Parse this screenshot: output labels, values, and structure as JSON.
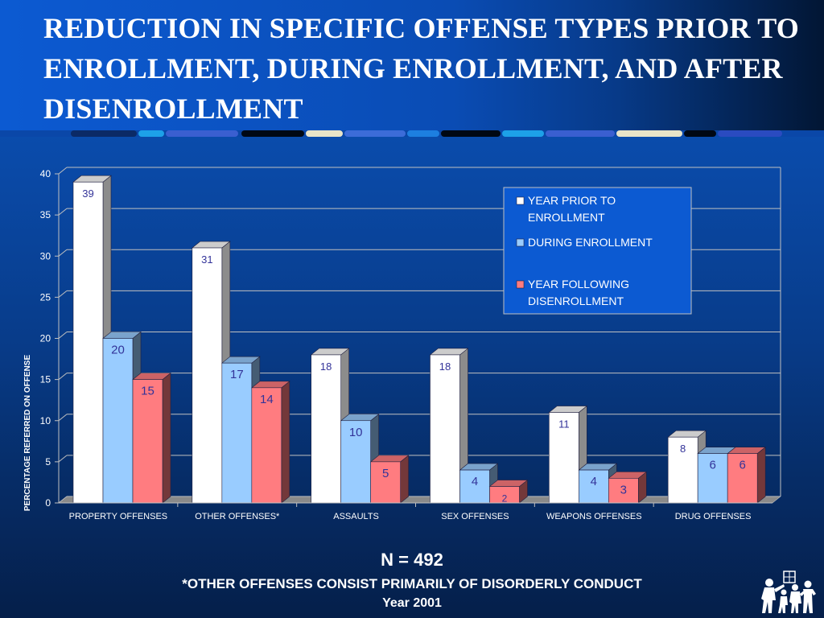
{
  "slide": {
    "title": "REDUCTION IN SPECIFIC OFFENSE TYPES PRIOR TO ENROLLMENT, DURING ENROLLMENT, AND AFTER DISENROLLMENT",
    "n_label": "N = 492",
    "note": "*OTHER OFFENSES CONSIST PRIMARILY OF DISORDERLY CONDUCT",
    "year": "Year 2001"
  },
  "logo_icon": "family-icon",
  "chart_data": {
    "type": "bar",
    "title": "",
    "xlabel": "",
    "ylabel": "PERCENTAGE REFERRED ON OFFENSE",
    "ylim": [
      0,
      40
    ],
    "yticks": [
      0,
      5,
      10,
      15,
      20,
      25,
      30,
      35,
      40
    ],
    "grid": true,
    "legend_position": "top-right",
    "categories": [
      "PROPERTY OFFENSES",
      "OTHER OFFENSES*",
      "ASSAULTS",
      "SEX OFFENSES",
      "WEAPONS OFFENSES",
      "DRUG OFFENSES"
    ],
    "series": [
      {
        "name": "YEAR PRIOR TO ENROLLMENT",
        "values": [
          39,
          31,
          18,
          18,
          11,
          8
        ],
        "color": "#ffffff"
      },
      {
        "name": "DURING ENROLLMENT",
        "values": [
          20,
          17,
          10,
          4,
          4,
          6
        ],
        "color": "#99ccff"
      },
      {
        "name": "YEAR FOLLOWING DISENROLLMENT",
        "values": [
          15,
          14,
          5,
          2,
          3,
          6
        ],
        "color": "#ff7c80"
      }
    ],
    "colors": {
      "label_text": "#333399",
      "axis_text": "#ffffff",
      "gridline": "#c0c0c0",
      "legend_bg": "#0c5ad2"
    }
  }
}
